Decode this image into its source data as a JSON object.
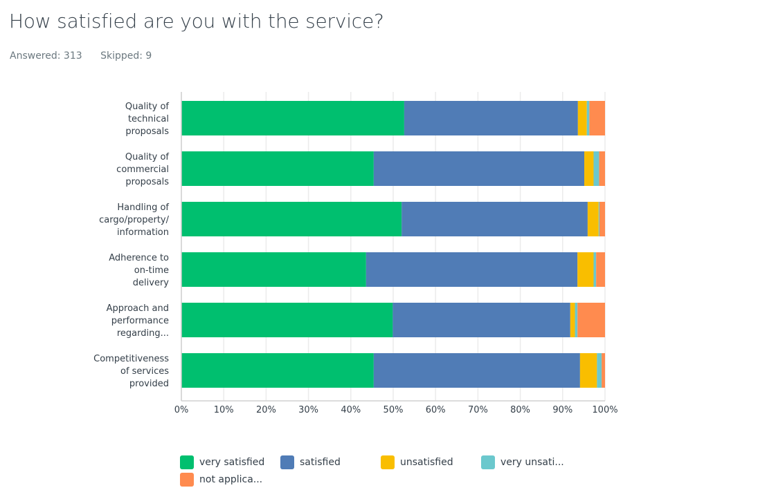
{
  "question": {
    "title": "How satisfied are you with the service?",
    "answered": "Answered: 313",
    "skipped": "Skipped: 9"
  },
  "chart_data": {
    "type": "bar",
    "orientation": "horizontal",
    "stacked": true,
    "title": "How satisfied are you with the service?",
    "xlabel": "",
    "ylabel": "",
    "xlim": [
      0,
      100
    ],
    "x_ticks": [
      "0%",
      "10%",
      "20%",
      "30%",
      "40%",
      "50%",
      "60%",
      "70%",
      "80%",
      "90%",
      "100%"
    ],
    "grid": true,
    "legend_position": "bottom",
    "categories": [
      [
        "Quality of",
        "technical",
        "proposals"
      ],
      [
        "Quality of",
        "commercial",
        "proposals"
      ],
      [
        "Handling of",
        "cargo/property/",
        "information"
      ],
      [
        "Adherence to",
        "on-time",
        "delivery"
      ],
      [
        "Approach and",
        "performance",
        "regarding..."
      ],
      [
        "Competitiveness",
        "of services",
        "provided"
      ]
    ],
    "series": [
      {
        "name": "very satisfied",
        "legend_label": "very satisfied",
        "color": "#00bf6f",
        "values": [
          52.6,
          45.4,
          52.0,
          43.6,
          49.9,
          45.4
        ]
      },
      {
        "name": "satisfied",
        "legend_label": "satisfied",
        "color": "#507cb6",
        "values": [
          41.0,
          49.7,
          43.9,
          49.9,
          41.9,
          48.7
        ]
      },
      {
        "name": "unsatisfied",
        "legend_label": "unsatisfied",
        "color": "#f9be00",
        "values": [
          2.1,
          2.2,
          2.6,
          3.8,
          1.1,
          4.0
        ]
      },
      {
        "name": "very unsatisfied",
        "legend_label": "very unsati...",
        "color": "#6bc8cd",
        "values": [
          0.6,
          1.3,
          0.2,
          0.6,
          0.6,
          1.1
        ]
      },
      {
        "name": "not applicable",
        "legend_label": "not applica...",
        "color": "#ff8b4f",
        "values": [
          3.7,
          1.4,
          1.3,
          2.1,
          6.5,
          0.8
        ]
      }
    ]
  }
}
